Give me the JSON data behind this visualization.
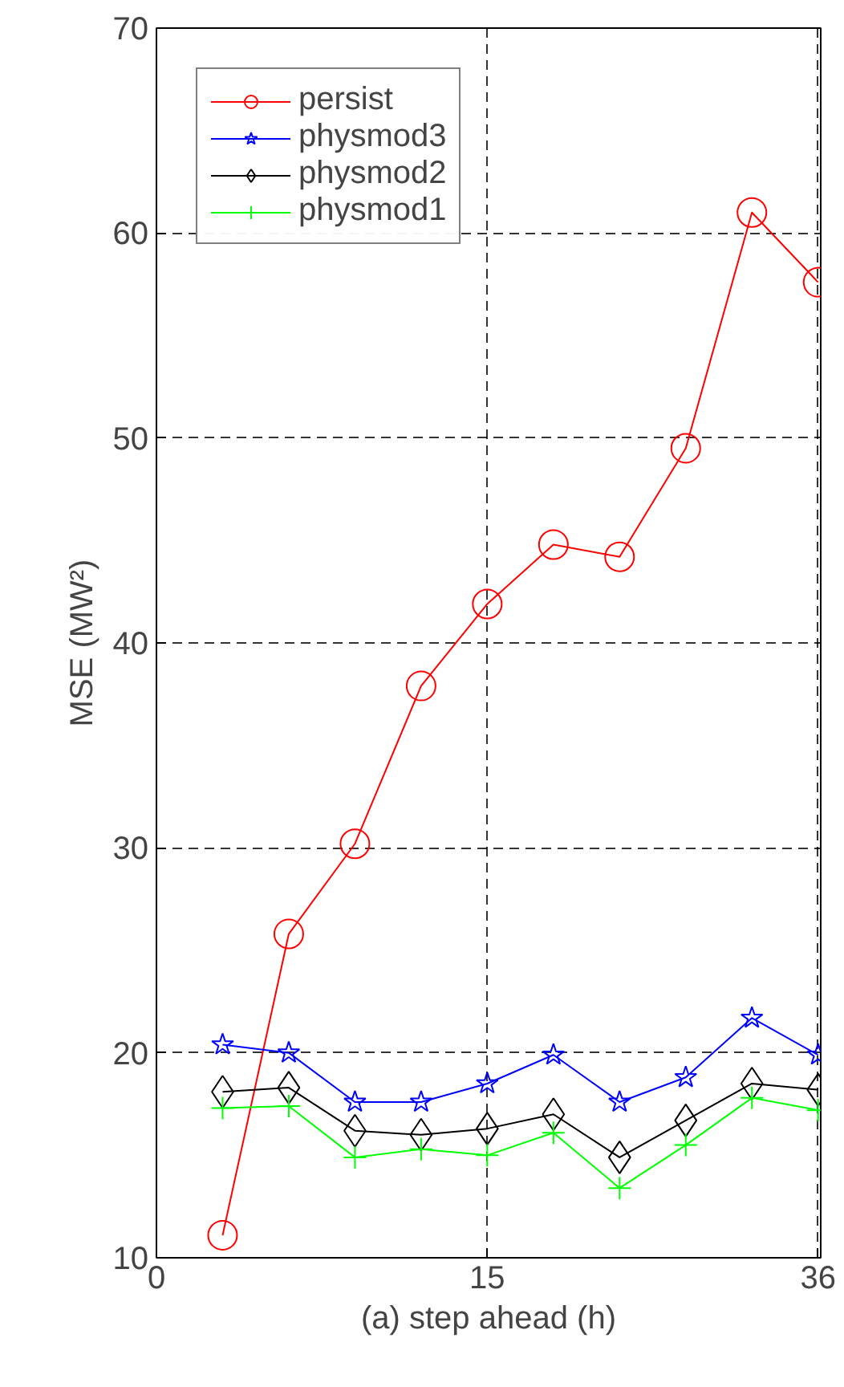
{
  "chart_data": {
    "type": "line",
    "xlabel": "(a) step ahead (h)",
    "ylabel": "MSE (MW²)",
    "categories": [
      "0",
      null,
      null,
      null,
      null,
      "15",
      null,
      null,
      null,
      null,
      "36"
    ],
    "ylim": [
      10,
      70
    ],
    "yticks": [
      10,
      20,
      30,
      40,
      50,
      60,
      70
    ],
    "grid": true,
    "legend": "top left",
    "line_style": "solid",
    "series": [
      {
        "name": "persist",
        "color": "#ff0000",
        "marker": "circle",
        "values": [
          null,
          11.1,
          25.8,
          30.2,
          37.9,
          41.9,
          44.8,
          44.2,
          49.5,
          61.0,
          57.6
        ]
      },
      {
        "name": "physmod3",
        "color": "#0000ff",
        "marker": "star",
        "values": [
          null,
          20.4,
          20.0,
          17.6,
          17.6,
          18.5,
          19.9,
          17.6,
          18.8,
          21.7,
          19.9
        ]
      },
      {
        "name": "physmod2",
        "color": "#000000",
        "marker": "diamond",
        "values": [
          null,
          18.1,
          18.3,
          16.2,
          16.0,
          16.3,
          17.0,
          14.9,
          16.7,
          18.5,
          18.2
        ]
      },
      {
        "name": "physmod1",
        "color": "#00ff00",
        "marker": "cross",
        "values": [
          null,
          17.3,
          17.4,
          14.9,
          15.3,
          15.0,
          16.1,
          13.4,
          15.5,
          17.8,
          17.2
        ]
      }
    ]
  }
}
